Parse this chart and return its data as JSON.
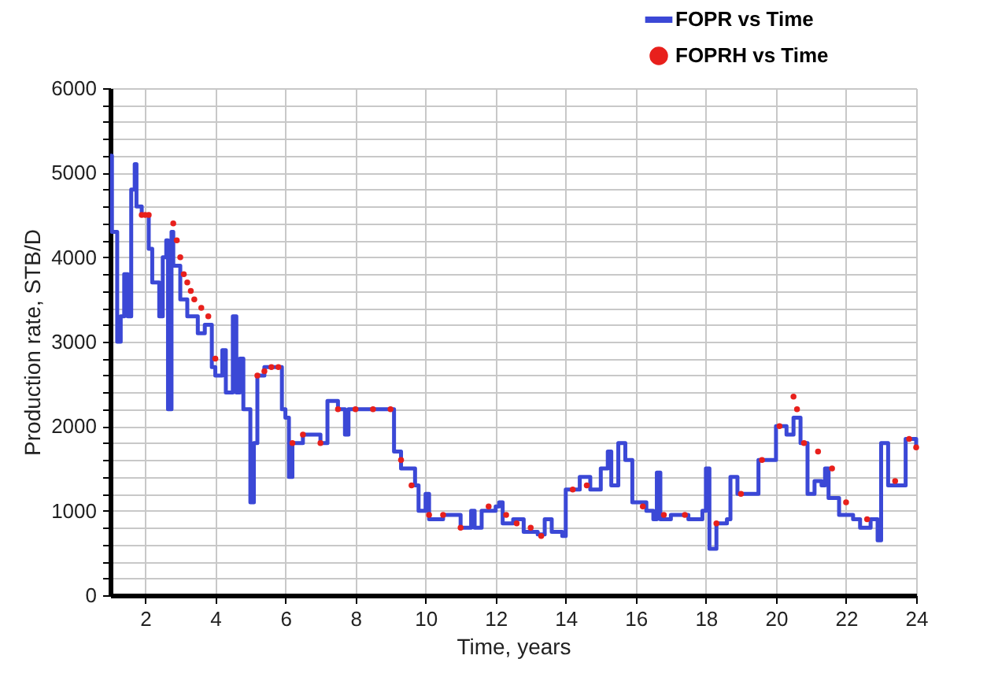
{
  "chart_data": {
    "type": "line",
    "xlabel": "Time, years",
    "ylabel": "Production rate, STB/D",
    "xlim": [
      1,
      24
    ],
    "xticks": [
      2,
      4,
      6,
      8,
      10,
      12,
      14,
      16,
      18,
      20,
      22,
      24
    ],
    "ylim": [
      0,
      6000
    ],
    "yticks": [
      0,
      {
        "value": 200,
        "label": null
      },
      {
        "value": 400,
        "label": null
      },
      {
        "value": 600,
        "label": null
      },
      {
        "value": 800,
        "label": null
      },
      1000,
      {
        "value": 1200,
        "label": null
      },
      {
        "value": 1400,
        "label": null
      },
      {
        "value": 1600,
        "label": null
      },
      {
        "value": 1800,
        "label": null
      },
      2000,
      {
        "value": 2200,
        "label": null
      },
      {
        "value": 2400,
        "label": null
      },
      {
        "value": 2600,
        "label": null
      },
      {
        "value": 2800,
        "label": null
      },
      3000,
      {
        "value": 3200,
        "label": null
      },
      {
        "value": 3400,
        "label": null
      },
      {
        "value": 3600,
        "label": null
      },
      {
        "value": 3800,
        "label": null
      },
      4000,
      {
        "value": 4200,
        "label": null
      },
      {
        "value": 4400,
        "label": null
      },
      {
        "value": 4600,
        "label": null
      },
      {
        "value": 4800,
        "label": null
      },
      5000,
      {
        "value": 5200,
        "label": null
      },
      {
        "value": 5400,
        "label": null
      },
      {
        "value": 5600,
        "label": null
      },
      {
        "value": 5800,
        "label": null
      },
      6000
    ],
    "grid": true,
    "legend": "top right",
    "series": [
      {
        "name": "FOPR vs Time",
        "type": "step",
        "color": "#3b48d6",
        "marker": "none",
        "line_style": "solid",
        "x": [
          1.0,
          1.05,
          1.2,
          1.3,
          1.4,
          1.5,
          1.6,
          1.7,
          1.75,
          1.9,
          2.1,
          2.2,
          2.4,
          2.5,
          2.6,
          2.65,
          2.75,
          2.8,
          3.0,
          3.2,
          3.5,
          3.7,
          3.9,
          4.0,
          4.2,
          4.3,
          4.5,
          4.6,
          4.7,
          4.8,
          5.0,
          5.1,
          5.2,
          5.4,
          5.9,
          6.0,
          6.1,
          6.2,
          6.5,
          7.0,
          7.2,
          7.5,
          7.7,
          7.8,
          9.1,
          9.3,
          9.7,
          9.8,
          10.0,
          10.1,
          10.5,
          11.0,
          11.3,
          11.4,
          11.6,
          12.0,
          12.1,
          12.2,
          12.5,
          12.8,
          13.2,
          13.4,
          13.6,
          13.9,
          14.0,
          14.4,
          14.7,
          15.0,
          15.2,
          15.3,
          15.5,
          15.7,
          15.9,
          16.3,
          16.5,
          16.6,
          16.7,
          17.0,
          17.5,
          17.9,
          18.0,
          18.1,
          18.3,
          18.6,
          18.7,
          18.9,
          19.4,
          19.5,
          19.9,
          20.0,
          20.3,
          20.5,
          20.7,
          20.9,
          21.1,
          21.3,
          21.4,
          21.5,
          21.8,
          22.2,
          22.4,
          22.7,
          22.9,
          23.0,
          23.2,
          23.6,
          23.7,
          24.0
        ],
        "values": [
          5200,
          4300,
          3000,
          3300,
          3800,
          3300,
          4800,
          5100,
          4600,
          4500,
          4100,
          3700,
          3300,
          4000,
          4200,
          2200,
          4300,
          3900,
          3500,
          3300,
          3100,
          3200,
          2700,
          2600,
          2900,
          2400,
          3300,
          2400,
          2800,
          2200,
          1100,
          1800,
          2600,
          2700,
          2200,
          2100,
          1400,
          1800,
          1900,
          1800,
          2300,
          2200,
          1900,
          2200,
          1700,
          1500,
          1300,
          1000,
          1200,
          900,
          950,
          800,
          1000,
          800,
          1000,
          1050,
          1100,
          850,
          900,
          750,
          720,
          900,
          750,
          700,
          1250,
          1400,
          1250,
          1500,
          1700,
          1300,
          1800,
          1600,
          1100,
          1000,
          900,
          1450,
          900,
          950,
          900,
          1000,
          1500,
          550,
          850,
          900,
          1400,
          1200,
          1200,
          1600,
          1600,
          2000,
          1900,
          2100,
          1800,
          1200,
          1350,
          1300,
          1500,
          1150,
          950,
          900,
          800,
          900,
          650,
          1800,
          1300,
          1300,
          1850,
          1750
        ]
      },
      {
        "name": "FOPRH vs Time",
        "type": "scatter",
        "color": "#e8201c",
        "marker": "circle",
        "x": [
          1.9,
          2.0,
          2.1,
          2.8,
          2.9,
          3.0,
          3.1,
          3.2,
          3.3,
          3.4,
          3.6,
          3.8,
          4.0,
          5.2,
          5.4,
          5.6,
          5.8,
          6.2,
          6.5,
          7.0,
          7.5,
          8.0,
          8.5,
          9.0,
          9.3,
          9.6,
          10.1,
          10.5,
          11.0,
          11.8,
          12.3,
          12.6,
          13.0,
          13.3,
          14.2,
          14.6,
          16.2,
          16.8,
          17.4,
          18.3,
          19.0,
          19.6,
          20.1,
          20.5,
          20.6,
          20.8,
          21.2,
          21.6,
          22.0,
          22.6,
          23.4,
          23.8,
          24.0
        ],
        "values": [
          4500,
          4500,
          4500,
          4400,
          4200,
          4000,
          3800,
          3700,
          3600,
          3500,
          3400,
          3300,
          2800,
          2600,
          2650,
          2700,
          2700,
          1800,
          1900,
          1800,
          2200,
          2200,
          2200,
          2200,
          1600,
          1300,
          950,
          950,
          800,
          1050,
          950,
          850,
          800,
          700,
          1250,
          1300,
          1050,
          950,
          950,
          850,
          1200,
          1600,
          2000,
          2350,
          2200,
          1800,
          1700,
          1500,
          1100,
          900,
          1350,
          1850,
          1750
        ]
      }
    ]
  }
}
